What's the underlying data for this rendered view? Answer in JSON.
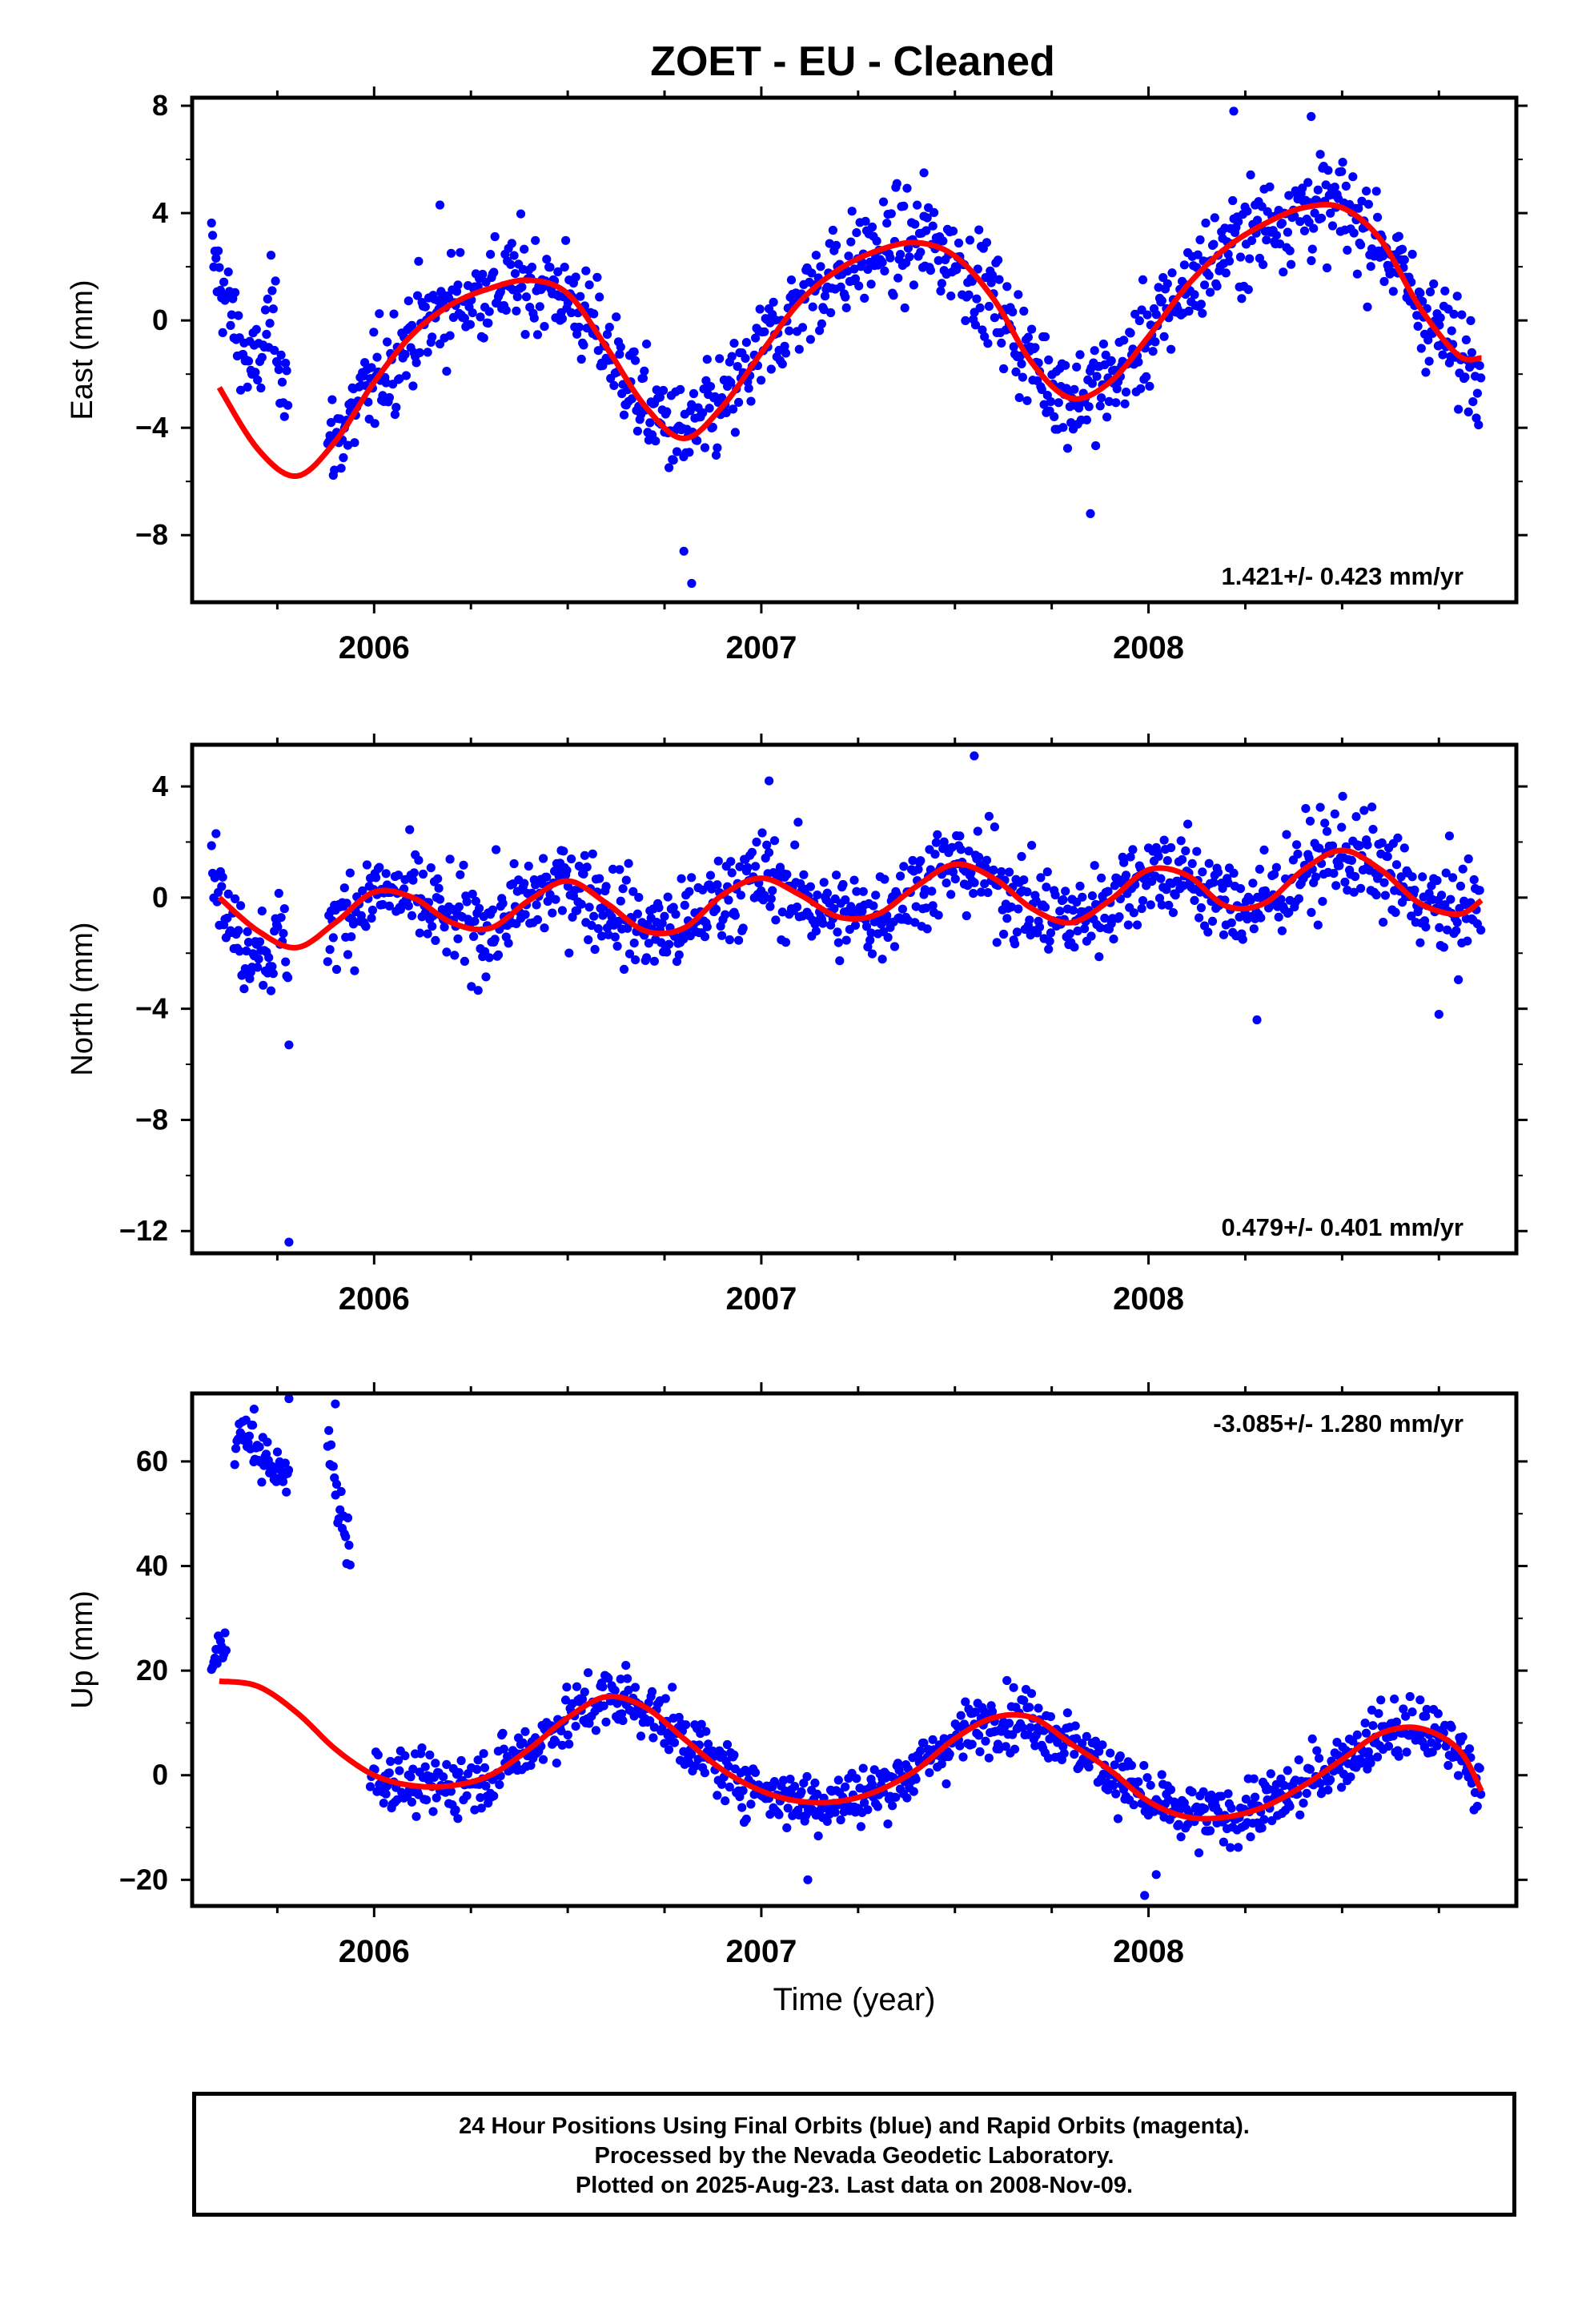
{
  "title": "ZOET  - EU - Cleaned",
  "footer": {
    "line1": "24 Hour Positions Using Final Orbits (blue) and Rapid Orbits (magenta).",
    "line2": "Processed by the Nevada Geodetic Laboratory.",
    "line3": "Plotted on 2025-Aug-23. Last data on 2008-Nov-09."
  },
  "colors": {
    "points": "#0000ff",
    "fit": "#ff0000",
    "axes": "#000000"
  },
  "chart_data": [
    {
      "type": "scatter",
      "name": "east",
      "ylabel": "East (mm)",
      "xlabel": "",
      "xlim": [
        2005.53,
        2008.95
      ],
      "ylim": [
        -10.5,
        8.3
      ],
      "yticks": [
        8,
        4,
        0,
        -4,
        -8
      ],
      "yticklabels": [
        "8",
        "4",
        "0",
        "−4",
        "−8"
      ],
      "xticks": [
        2006,
        2007,
        2008
      ],
      "xticklabels": [
        "2006",
        "2007",
        "2008"
      ],
      "rate_label": "1.421+/- 0.423 mm/yr",
      "rate_position": "bottom-right",
      "fit_curve": {
        "x": [
          2005.6,
          2005.7,
          2005.8,
          2005.9,
          2006.0,
          2006.1,
          2006.2,
          2006.3,
          2006.4,
          2006.5,
          2006.6,
          2006.7,
          2006.8,
          2006.9,
          2007.0,
          2007.1,
          2007.2,
          2007.3,
          2007.4,
          2007.5,
          2007.6,
          2007.7,
          2007.8,
          2007.9,
          2008.0,
          2008.1,
          2008.2,
          2008.3,
          2008.4,
          2008.5,
          2008.6,
          2008.7,
          2008.8,
          2008.86
        ],
        "y": [
          -2.5,
          -4.8,
          -5.8,
          -4.5,
          -2.3,
          -0.5,
          0.6,
          1.2,
          1.5,
          1.0,
          -1.0,
          -3.2,
          -4.4,
          -3.2,
          -1.2,
          0.7,
          1.9,
          2.6,
          2.9,
          2.4,
          0.8,
          -1.6,
          -2.9,
          -2.3,
          -0.6,
          1.3,
          2.7,
          3.6,
          4.2,
          4.2,
          3.0,
          0.5,
          -1.3,
          -1.4
        ]
      },
      "segments": [
        {
          "x0": 2005.58,
          "x1": 2005.78,
          "ys": [
            2.5,
            1.5,
            0.5,
            -0.5,
            -1.5,
            -2.0,
            -1.0,
            0.5,
            -1.5,
            -2.5
          ],
          "noise": 1.2
        },
        {
          "x0": 2005.88,
          "x1": 2008.86,
          "noise": 1.3
        }
      ],
      "outliers": [
        [
          2006.82,
          -9.8
        ],
        [
          2006.8,
          -8.6
        ],
        [
          2007.85,
          -7.2
        ],
        [
          2008.22,
          7.8
        ],
        [
          2008.42,
          7.6
        ],
        [
          2006.17,
          4.3
        ],
        [
          2007.42,
          5.5
        ]
      ]
    },
    {
      "type": "scatter",
      "name": "north",
      "ylabel": "North (mm)",
      "xlabel": "",
      "xlim": [
        2005.53,
        2008.95
      ],
      "ylim": [
        -12.8,
        5.5
      ],
      "yticks": [
        4,
        0,
        -4,
        -8,
        -12
      ],
      "yticklabels": [
        "4",
        "0",
        "−4",
        "−8",
        "−12"
      ],
      "xticks": [
        2006,
        2007,
        2008
      ],
      "xticklabels": [
        "2006",
        "2007",
        "2008"
      ],
      "rate_label": "0.479+/- 0.401 mm/yr",
      "rate_position": "bottom-right",
      "fit_curve": {
        "x": [
          2005.6,
          2005.7,
          2005.8,
          2005.9,
          2006.0,
          2006.1,
          2006.2,
          2006.3,
          2006.4,
          2006.5,
          2006.6,
          2006.7,
          2006.8,
          2006.9,
          2007.0,
          2007.1,
          2007.2,
          2007.3,
          2007.4,
          2007.5,
          2007.6,
          2007.7,
          2007.8,
          2007.9,
          2008.0,
          2008.1,
          2008.2,
          2008.3,
          2008.4,
          2008.5,
          2008.6,
          2008.7,
          2008.8,
          2008.86
        ],
        "y": [
          0.0,
          -1.2,
          -1.8,
          -0.9,
          0.2,
          0.0,
          -0.9,
          -1.1,
          -0.1,
          0.6,
          -0.2,
          -1.2,
          -1.1,
          0.1,
          0.7,
          0.1,
          -0.7,
          -0.6,
          0.4,
          1.2,
          0.7,
          -0.4,
          -0.9,
          -0.1,
          1.0,
          0.8,
          -0.3,
          -0.2,
          1.0,
          1.7,
          1.0,
          -0.2,
          -0.6,
          -0.1
        ]
      },
      "segments": [
        {
          "x0": 2005.58,
          "x1": 2005.78,
          "ys": [
            1.5,
            0.5,
            -1.0,
            -1.5,
            -2.0,
            -1.5,
            -1.8,
            -2.2,
            -1.0,
            -2.5
          ],
          "noise": 1.0
        },
        {
          "x0": 2005.88,
          "x1": 2008.86,
          "noise": 1.2
        }
      ],
      "outliers": [
        [
          2005.78,
          -12.4
        ],
        [
          2005.78,
          -5.3
        ],
        [
          2007.55,
          5.1
        ],
        [
          2007.02,
          4.2
        ],
        [
          2008.28,
          -4.4
        ],
        [
          2008.75,
          -4.2
        ]
      ]
    },
    {
      "type": "scatter",
      "name": "up",
      "ylabel": "Up (mm)",
      "xlabel": "Time (year)",
      "xlim": [
        2005.53,
        2008.95
      ],
      "ylim": [
        -25,
        73
      ],
      "yticks": [
        60,
        40,
        20,
        0,
        -20
      ],
      "yticklabels": [
        "60",
        "40",
        "20",
        "0",
        "−20"
      ],
      "xticks": [
        2006,
        2007,
        2008
      ],
      "xticklabels": [
        "2006",
        "2007",
        "2008"
      ],
      "rate_label": "-3.085+/- 1.280 mm/yr",
      "rate_position": "top-right",
      "fit_curve": {
        "x": [
          2005.6,
          2005.7,
          2005.8,
          2005.9,
          2006.0,
          2006.1,
          2006.2,
          2006.3,
          2006.4,
          2006.5,
          2006.6,
          2006.7,
          2006.8,
          2006.9,
          2007.0,
          2007.1,
          2007.2,
          2007.3,
          2007.4,
          2007.5,
          2007.6,
          2007.7,
          2007.8,
          2007.9,
          2008.0,
          2008.1,
          2008.2,
          2008.3,
          2008.4,
          2008.5,
          2008.6,
          2008.7,
          2008.8,
          2008.86
        ],
        "y": [
          18,
          17,
          12,
          5,
          0,
          -2,
          -2,
          0,
          5,
          11,
          15,
          13,
          7,
          1,
          -3,
          -5,
          -5,
          -3,
          1,
          7,
          11,
          11,
          6,
          1,
          -5,
          -8,
          -8,
          -6,
          -2,
          3,
          8,
          9,
          5,
          -3
        ]
      },
      "segments": [
        {
          "x0": 2005.58,
          "x1": 2005.62,
          "ys": [
            20,
            24,
            26
          ],
          "noise": 3
        },
        {
          "x0": 2005.64,
          "x1": 2005.78,
          "ys": [
            65,
            65,
            62,
            60,
            58,
            56
          ],
          "noise": 3
        },
        {
          "x0": 2005.88,
          "x1": 2005.94,
          "ys": [
            65,
            55,
            48,
            44
          ],
          "noise": 4
        },
        {
          "x0": 2005.99,
          "x1": 2008.86,
          "noise": 4
        }
      ],
      "outliers": [
        [
          2005.78,
          72
        ],
        [
          2005.69,
          70
        ],
        [
          2005.9,
          71
        ],
        [
          2007.99,
          -23
        ],
        [
          2007.12,
          -20
        ],
        [
          2008.02,
          -19
        ],
        [
          2006.65,
          21
        ]
      ]
    }
  ]
}
